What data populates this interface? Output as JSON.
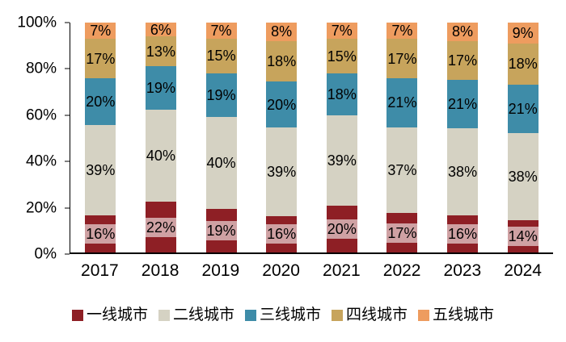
{
  "chart_data": {
    "type": "bar",
    "variant": "stacked-100-percent",
    "categories": [
      "2017",
      "2018",
      "2019",
      "2020",
      "2021",
      "2022",
      "2023",
      "2024"
    ],
    "series": [
      {
        "name": "一线城市",
        "color": "#8E1F25",
        "values": [
          16,
          22,
          19,
          16,
          20,
          17,
          16,
          14
        ]
      },
      {
        "name": "二线城市",
        "color": "#D5D2C3",
        "values": [
          39,
          40,
          40,
          39,
          39,
          37,
          38,
          38
        ]
      },
      {
        "name": "三线城市",
        "color": "#3E8CA8",
        "values": [
          20,
          19,
          19,
          20,
          18,
          21,
          21,
          21
        ]
      },
      {
        "name": "四线城市",
        "color": "#C7A45C",
        "values": [
          17,
          13,
          15,
          18,
          15,
          17,
          17,
          18
        ]
      },
      {
        "name": "五线城市",
        "color": "#EE9C5F",
        "values": [
          7,
          6,
          7,
          8,
          7,
          7,
          8,
          9
        ]
      }
    ],
    "value_suffix": "%",
    "y_ticks": [
      "0%",
      "20%",
      "40%",
      "60%",
      "80%",
      "100%"
    ],
    "ylim": [
      0,
      100
    ],
    "grid": false,
    "legend_position": "bottom"
  },
  "colors": {
    "background": "#FFFFFF",
    "axis": "#000000",
    "text": "#000000",
    "first_tier_label_box": "rgba(255,255,255,0.58)"
  }
}
